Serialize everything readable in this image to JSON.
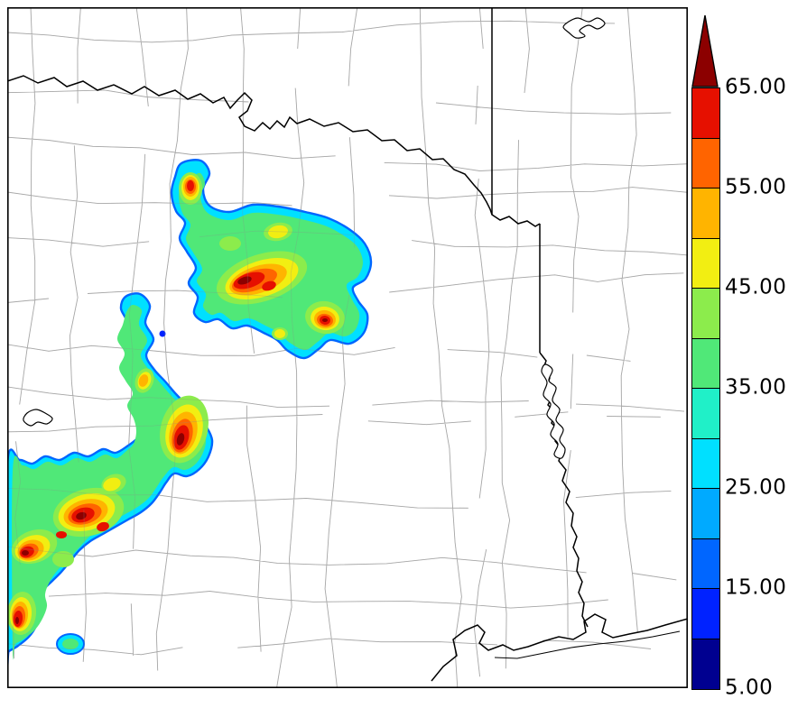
{
  "figure": {
    "background": "#ffffff",
    "frame_color": "#000000"
  },
  "map": {
    "county_line_color": "#b4b4b4",
    "state_border_color": "#000000",
    "water_outline_color": "#000000",
    "land_color": "#ffffff"
  },
  "colorbar": {
    "tick_labels": [
      "65.00",
      "55.00",
      "45.00",
      "35.00",
      "25.00",
      "15.00",
      "5.00"
    ],
    "values": [
      65,
      55,
      45,
      35,
      25,
      15,
      5
    ],
    "min": 5,
    "max": 65,
    "interval": 5,
    "segment_colors": [
      "#000090",
      "#0022ff",
      "#0066ff",
      "#00aaff",
      "#00e0ff",
      "#20f0c8",
      "#50e878",
      "#8cec4c",
      "#f2ee12",
      "#ffb400",
      "#ff6400",
      "#e61000"
    ],
    "extend_above_color": "#8c0000",
    "outline_color": "#000000",
    "label_color": "#000000"
  },
  "chart_data": {
    "type": "heatmap",
    "title": "",
    "legend_ticks": [
      "65.00",
      "55.00",
      "45.00",
      "35.00",
      "25.00",
      "15.00",
      "5.00"
    ],
    "value_range": [
      5,
      65
    ],
    "level_step": 5,
    "colormap": [
      "#000090",
      "#0022ff",
      "#0066ff",
      "#00aaff",
      "#00e0ff",
      "#20f0c8",
      "#50e878",
      "#8cec4c",
      "#f2ee12",
      "#ffb400",
      "#ff6400",
      "#e61000"
    ],
    "overflow_color": "#8c0000"
  }
}
